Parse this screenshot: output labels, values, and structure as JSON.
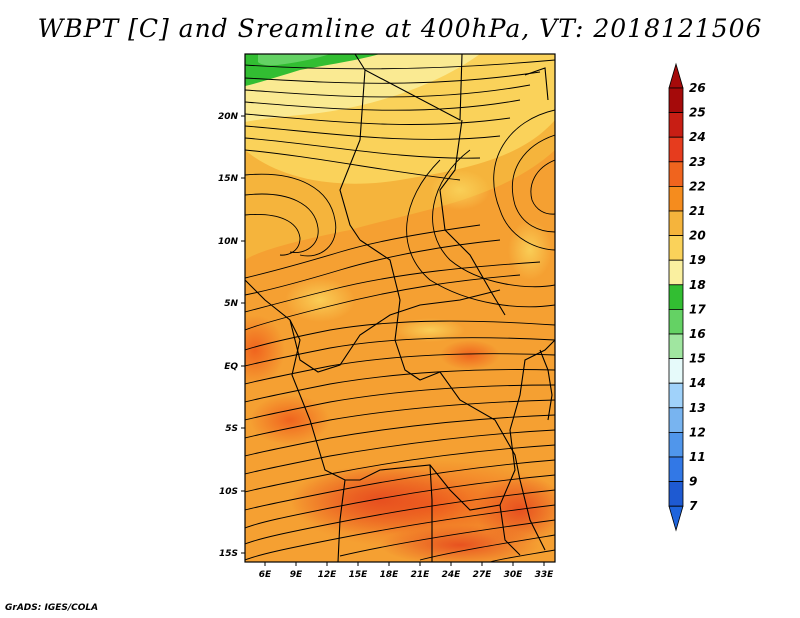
{
  "title": "WBPT [C] and Sreamline at 400hPa, VT: 2018121506",
  "credit": "GrADS: IGES/COLA",
  "map": {
    "lat_ticks": [
      "20N",
      "15N",
      "10N",
      "5N",
      "EQ",
      "5S",
      "10S",
      "15S"
    ],
    "lon_ticks": [
      "6E",
      "9E",
      "12E",
      "15E",
      "18E",
      "21E",
      "24E",
      "27E",
      "30E",
      "33E"
    ],
    "lon_range_deg": [
      4.2,
      33.2
    ],
    "lat_range_deg": [
      -15.6,
      24.5
    ]
  },
  "colorbar": {
    "labels": [
      "26",
      "25",
      "24",
      "23",
      "22",
      "21",
      "20",
      "19",
      "18",
      "17",
      "16",
      "15",
      "14",
      "13",
      "12",
      "11",
      "9",
      "7"
    ],
    "colors": [
      "#a50a0a",
      "#c81e14",
      "#e63c1e",
      "#f0641e",
      "#f58c1e",
      "#f5b43c",
      "#fad25a",
      "#faf0a0",
      "#32be32",
      "#64d264",
      "#a0e6a0",
      "#e6fafa",
      "#a0d2fa",
      "#78b4f0",
      "#5096eb",
      "#3278e6",
      "#1e5ad2"
    ],
    "top_arrow_color": "#a50a0a",
    "bottom_arrow_color": "#1e64dc"
  }
}
